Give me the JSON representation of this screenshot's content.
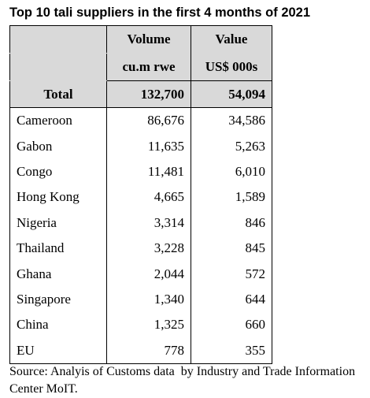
{
  "title": "Top 10 tali suppliers in the first 4 months of 2021",
  "table": {
    "columns": [
      {
        "name": "Volume",
        "unit": "cu.m rwe"
      },
      {
        "name": "Value",
        "unit": "US$ 000s"
      }
    ],
    "total": [
      "Total",
      "132,700",
      "54,094"
    ],
    "rows": [
      [
        "Cameroon",
        "86,676",
        "34,586"
      ],
      [
        "Gabon",
        "11,635",
        "5,263"
      ],
      [
        "Congo",
        "11,481",
        "6,010"
      ],
      [
        "Hong Kong",
        "4,665",
        "1,589"
      ],
      [
        "Nigeria",
        "3,314",
        "846"
      ],
      [
        "Thailand",
        "3,228",
        "845"
      ],
      [
        "Ghana",
        "2,044",
        "572"
      ],
      [
        "Singapore",
        "1,340",
        "644"
      ],
      [
        "China",
        "1,325",
        "660"
      ],
      [
        "EU",
        "778",
        "355"
      ]
    ]
  },
  "source": "Source: Analyis of Customs data  by Industry and Trade Information Center MoIT."
}
